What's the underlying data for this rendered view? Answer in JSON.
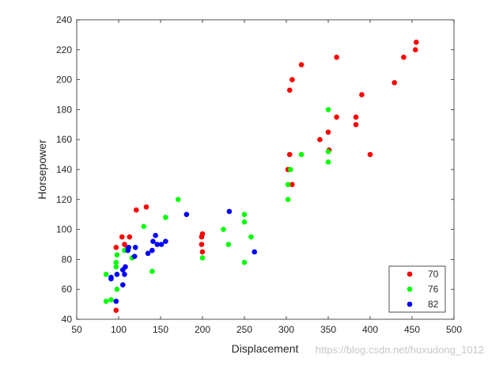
{
  "chart_data": {
    "type": "scatter",
    "xlabel": "Displacement",
    "ylabel": "Horsepower",
    "xlim": [
      50,
      500
    ],
    "ylim": [
      40,
      240
    ],
    "xticks": [
      50,
      100,
      150,
      200,
      250,
      300,
      350,
      400,
      450,
      500
    ],
    "yticks": [
      40,
      60,
      80,
      100,
      120,
      140,
      160,
      180,
      200,
      220,
      240
    ],
    "grid": false,
    "legend_position": "bottom-right",
    "series": [
      {
        "name": "70",
        "color": "#ff0000",
        "points": [
          [
            455,
            225
          ],
          [
            454,
            220
          ],
          [
            440,
            215
          ],
          [
            429,
            198
          ],
          [
            390,
            190
          ],
          [
            383,
            175
          ],
          [
            383,
            170
          ],
          [
            360,
            215
          ],
          [
            360,
            175
          ],
          [
            350,
            165
          ],
          [
            351,
            153
          ],
          [
            340,
            160
          ],
          [
            318,
            210
          ],
          [
            307,
            200
          ],
          [
            304,
            193
          ],
          [
            304,
            150
          ],
          [
            302,
            140
          ],
          [
            307,
            130
          ],
          [
            400,
            150
          ],
          [
            200,
            97
          ],
          [
            199,
            95
          ],
          [
            199,
            90
          ],
          [
            200,
            85
          ],
          [
            133,
            115
          ],
          [
            121,
            113
          ],
          [
            113,
            95
          ],
          [
            104,
            95
          ],
          [
            107,
            90
          ],
          [
            110,
            87
          ],
          [
            97,
            88
          ],
          [
            97,
            46
          ]
        ]
      },
      {
        "name": "76",
        "color": "#00ff00",
        "points": [
          [
            350,
            180
          ],
          [
            350,
            152
          ],
          [
            350,
            145
          ],
          [
            318,
            150
          ],
          [
            305,
            140
          ],
          [
            302,
            130
          ],
          [
            302,
            120
          ],
          [
            250,
            110
          ],
          [
            250,
            105
          ],
          [
            258,
            95
          ],
          [
            225,
            100
          ],
          [
            231,
            90
          ],
          [
            250,
            78
          ],
          [
            200,
            81
          ],
          [
            171,
            120
          ],
          [
            156,
            108
          ],
          [
            130,
            102
          ],
          [
            140,
            72
          ],
          [
            116,
            81
          ],
          [
            111,
            86
          ],
          [
            107,
            86
          ],
          [
            98,
            83
          ],
          [
            97,
            78
          ],
          [
            97,
            75
          ],
          [
            98,
            70
          ],
          [
            98,
            60
          ],
          [
            85,
            70
          ],
          [
            85,
            52
          ],
          [
            91,
            53
          ]
        ]
      },
      {
        "name": "82",
        "color": "#0000ff",
        "points": [
          [
            262,
            85
          ],
          [
            232,
            112
          ],
          [
            181,
            110
          ],
          [
            151,
            90
          ],
          [
            156,
            92
          ],
          [
            146,
            90
          ],
          [
            144,
            96
          ],
          [
            141,
            92
          ],
          [
            140,
            86
          ],
          [
            135,
            84
          ],
          [
            120,
            88
          ],
          [
            119,
            82
          ],
          [
            112,
            88
          ],
          [
            108,
            75
          ],
          [
            107,
            70
          ],
          [
            105,
            73
          ],
          [
            105,
            63
          ],
          [
            98,
            70
          ],
          [
            97,
            52
          ],
          [
            91,
            67
          ],
          [
            91,
            68
          ],
          [
            111,
            86
          ]
        ]
      }
    ]
  },
  "watermark": "https://blog.csdn.net/huxudong_1012"
}
